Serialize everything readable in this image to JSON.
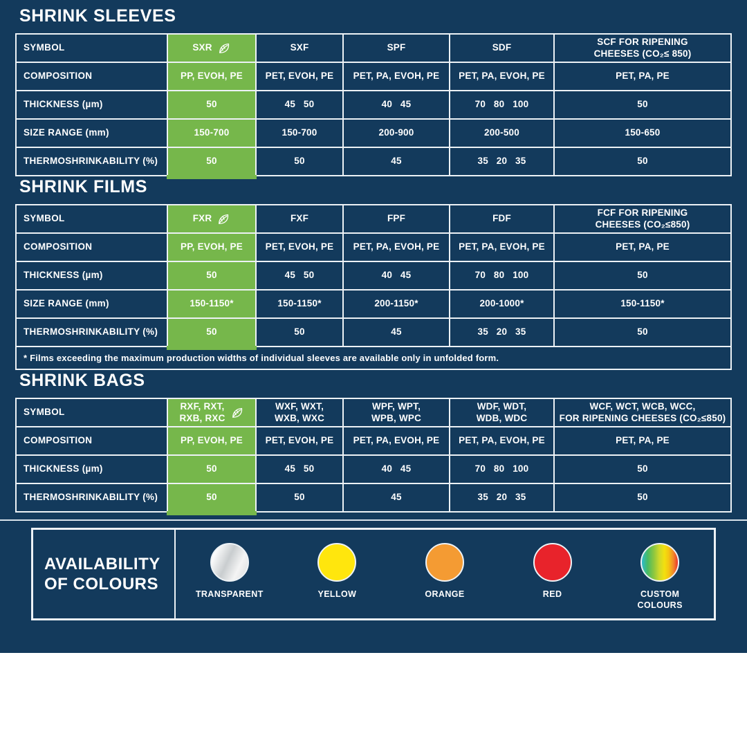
{
  "theme": {
    "background_navy": "#133A5C",
    "highlight_green": "#76B74B",
    "grid_line": "#EDF2F6",
    "text": "#FFFFFF",
    "page_bottom": "#FFFFFF",
    "swatch_yellow": "#FFE60D",
    "swatch_orange": "#F49B33",
    "swatch_red": "#E8232B",
    "swatch_silver": [
      "#FFFFFF",
      "#C9CDCF"
    ],
    "swatch_rainbow": [
      "#2AB9CF",
      "#49BB64",
      "#8CC63F",
      "#F3E00E",
      "#F2862A",
      "#E8342C"
    ]
  },
  "tables": [
    {
      "title": "SHRINK SLEEVES",
      "rows": [
        {
          "label": "SYMBOL",
          "header": true,
          "leaf": true,
          "cells": [
            "SXR",
            "SXF",
            "SPF",
            "SDF",
            "SCF FOR RIPENING\nCHEESES (CO₂≤ 850)"
          ]
        },
        {
          "label": "COMPOSITION",
          "cells": [
            "PP, EVOH, PE",
            "PET, EVOH, PE",
            "PET, PA, EVOH, PE",
            "PET, PA, EVOH, PE",
            "PET, PA, PE"
          ]
        },
        {
          "label": "THICKNESS (µm)",
          "cells": [
            "50",
            "45   50",
            "40   45",
            "70   80   100",
            "50"
          ]
        },
        {
          "label": "SIZE RANGE (mm)",
          "cells": [
            "150-700",
            "150-700",
            "200-900",
            "200-500",
            "150-650"
          ]
        },
        {
          "label": "THERMOSHRINKABILITY (%)",
          "cells": [
            "50",
            "50",
            "45",
            "35   20   35",
            "50"
          ]
        }
      ]
    },
    {
      "title": "SHRINK FILMS",
      "rows": [
        {
          "label": "SYMBOL",
          "header": true,
          "leaf": true,
          "cells": [
            "FXR",
            "FXF",
            "FPF",
            "FDF",
            "FCF FOR RIPENING\nCHEESES (CO₂≤850)"
          ]
        },
        {
          "label": "COMPOSITION",
          "cells": [
            "PP, EVOH, PE",
            "PET, EVOH, PE",
            "PET, PA, EVOH, PE",
            "PET, PA, EVOH, PE",
            "PET, PA, PE"
          ]
        },
        {
          "label": "THICKNESS (µm)",
          "cells": [
            "50",
            "45   50",
            "40   45",
            "70   80   100",
            "50"
          ]
        },
        {
          "label": "SIZE RANGE (mm)",
          "cells": [
            "150-1150*",
            "150-1150*",
            "200-1150*",
            "200-1000*",
            "150-1150*"
          ]
        },
        {
          "label": "THERMOSHRINKABILITY (%)",
          "cells": [
            "50",
            "50",
            "45",
            "35   20   35",
            "50"
          ]
        }
      ],
      "footnote": "* Films exceeding the maximum production widths of individual sleeves are available only in unfolded form."
    },
    {
      "title": "SHRINK BAGS",
      "rows": [
        {
          "label": "SYMBOL",
          "header": true,
          "leaf": true,
          "cells": [
            "RXF, RXT,\nRXB, RXC",
            "WXF, WXT,\nWXB, WXC",
            "WPF, WPT,\nWPB, WPC",
            "WDF, WDT,\nWDB, WDC",
            "WCF, WCT, WCB, WCC,\nFOR RIPENING CHEESES (CO₂≤850)"
          ]
        },
        {
          "label": "COMPOSITION",
          "cells": [
            "PP, EVOH, PE",
            "PET, EVOH, PE",
            "PET, PA, EVOH, PE",
            "PET, PA, EVOH, PE",
            "PET, PA, PE"
          ]
        },
        {
          "label": "THICKNESS (µm)",
          "cells": [
            "50",
            "45   50",
            "40   45",
            "70   80   100",
            "50"
          ]
        },
        {
          "label": "THERMOSHRINKABILITY (%)",
          "cells": [
            "50",
            "50",
            "45",
            "35   20   35",
            "50"
          ]
        }
      ]
    }
  ],
  "availability": {
    "title": "AVAILABILITY\nOF COLOURS",
    "colors": [
      {
        "label": "TRANSPARENT",
        "type": "silver"
      },
      {
        "label": "YELLOW",
        "type": "solid",
        "hex": "#FFE60D"
      },
      {
        "label": "ORANGE",
        "type": "solid",
        "hex": "#F49B33"
      },
      {
        "label": "RED",
        "type": "solid",
        "hex": "#E8232B"
      },
      {
        "label": "CUSTOM\nCOLOURS",
        "type": "rainbow"
      }
    ]
  }
}
